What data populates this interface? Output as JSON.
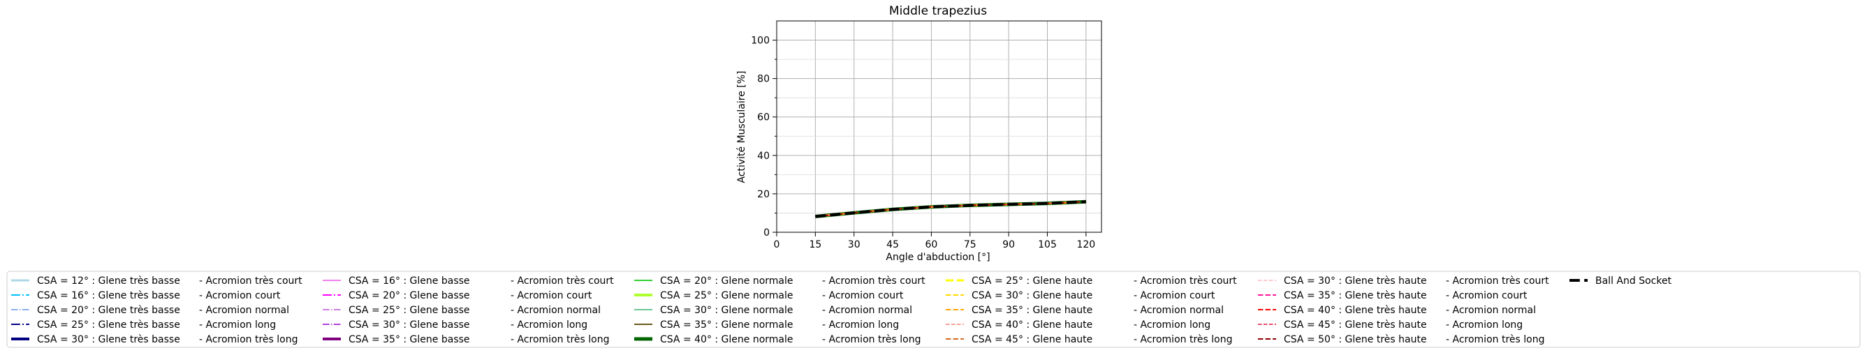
{
  "chart_data": {
    "type": "line",
    "title": "Middle trapezius",
    "xlabel": "Angle d'abduction [°]",
    "ylabel": "Activité Musculaire [%]",
    "xlim": [
      0,
      126
    ],
    "ylim": [
      0,
      110
    ],
    "xticks": [
      0,
      15,
      30,
      45,
      60,
      75,
      90,
      105,
      120
    ],
    "yticks": [
      0,
      20,
      40,
      60,
      80,
      100
    ],
    "grid": true,
    "legend_position": "bottom",
    "x": [
      15,
      30,
      45,
      60,
      75,
      90,
      105,
      120
    ],
    "series": [
      {
        "name": "CSA = 12° : Glene très basse",
        "color": "#add8e6",
        "dash": "solid",
        "width": 3,
        "values": [
          8.2,
          10.1,
          11.9,
          13.2,
          14.0,
          14.5,
          15.0,
          15.9
        ]
      },
      {
        "name": "CSA = 16° : Glene très basse",
        "color": "#00bfff",
        "dash": "dashdot",
        "width": 2,
        "values": [
          8.2,
          10.1,
          11.9,
          13.2,
          14.0,
          14.5,
          15.0,
          15.9
        ]
      },
      {
        "name": "CSA = 20° : Glene très basse",
        "color": "#6495ed",
        "dash": "dashdot",
        "width": 1.5,
        "values": [
          8.2,
          10.1,
          11.9,
          13.2,
          14.0,
          14.5,
          15.0,
          15.9
        ]
      },
      {
        "name": "CSA = 25° : Glene très basse",
        "color": "#00008b",
        "dash": "dashdot",
        "width": 2,
        "values": [
          8.2,
          10.1,
          11.9,
          13.2,
          14.0,
          14.5,
          15.0,
          15.9
        ]
      },
      {
        "name": "CSA = 30° : Glene très basse",
        "color": "#000080",
        "dash": "solid",
        "width": 4,
        "values": [
          8.2,
          10.1,
          11.9,
          13.2,
          14.0,
          14.5,
          15.0,
          15.9
        ]
      },
      {
        "name": "CSA = 16° : Glene basse",
        "color": "#ee82ee",
        "dash": "solid",
        "width": 2,
        "values": [
          8.2,
          10.1,
          11.9,
          13.2,
          14.0,
          14.5,
          15.0,
          15.9
        ]
      },
      {
        "name": "CSA = 20° : Glene basse",
        "color": "#ff00ff",
        "dash": "dashdot",
        "width": 2,
        "values": [
          8.2,
          10.1,
          11.9,
          13.2,
          14.0,
          14.5,
          15.0,
          15.9
        ]
      },
      {
        "name": "CSA = 25° : Glene basse",
        "color": "#ba55d3",
        "dash": "dashdot",
        "width": 1.5,
        "values": [
          8.2,
          10.1,
          11.9,
          13.2,
          14.0,
          14.5,
          15.0,
          15.9
        ]
      },
      {
        "name": "CSA = 30° : Glene basse",
        "color": "#9400d3",
        "dash": "dashdot",
        "width": 1.5,
        "values": [
          8.2,
          10.1,
          11.9,
          13.2,
          14.0,
          14.5,
          15.0,
          15.9
        ]
      },
      {
        "name": "CSA = 35° : Glene basse",
        "color": "#800080",
        "dash": "solid",
        "width": 4,
        "values": [
          8.2,
          10.1,
          11.9,
          13.2,
          14.0,
          14.5,
          15.0,
          15.9
        ]
      },
      {
        "name": "CSA = 20° : Glene normale",
        "color": "#32cd32",
        "dash": "solid",
        "width": 2,
        "values": [
          8.2,
          10.1,
          11.9,
          13.2,
          14.0,
          14.5,
          15.0,
          15.9
        ]
      },
      {
        "name": "CSA = 25° : Glene normale",
        "color": "#adff2f",
        "dash": "solid",
        "width": 4,
        "values": [
          8.2,
          10.1,
          11.9,
          13.2,
          14.0,
          14.5,
          15.0,
          15.9
        ]
      },
      {
        "name": "CSA = 30° : Glene normale",
        "color": "#3cb371",
        "dash": "solid",
        "width": 1.5,
        "values": [
          8.2,
          10.1,
          11.9,
          13.2,
          14.0,
          14.5,
          15.0,
          15.9
        ]
      },
      {
        "name": "CSA = 35° : Glene normale",
        "color": "#6b5a1e",
        "dash": "solid",
        "width": 2,
        "values": [
          8.2,
          10.1,
          11.9,
          13.2,
          14.0,
          14.5,
          15.0,
          15.9
        ]
      },
      {
        "name": "CSA = 40° : Glene normale",
        "color": "#006400",
        "dash": "solid",
        "width": 5,
        "values": [
          8.2,
          10.1,
          11.9,
          13.2,
          14.0,
          14.5,
          15.0,
          15.9
        ]
      },
      {
        "name": "CSA = 25° : Glene haute",
        "color": "#ffff00",
        "dash": "dashed",
        "width": 3,
        "values": [
          8.2,
          10.1,
          11.9,
          13.2,
          14.0,
          14.5,
          15.0,
          15.9
        ]
      },
      {
        "name": "CSA = 30° : Glene haute",
        "color": "#ffd700",
        "dash": "dashed",
        "width": 2,
        "values": [
          8.2,
          10.1,
          11.9,
          13.2,
          14.0,
          14.5,
          15.0,
          15.9
        ]
      },
      {
        "name": "CSA = 35° : Glene haute",
        "color": "#ffa500",
        "dash": "dashed",
        "width": 2,
        "values": [
          8.2,
          10.1,
          11.9,
          13.2,
          14.0,
          14.5,
          15.0,
          15.9
        ]
      },
      {
        "name": "CSA = 40° : Glene haute",
        "color": "#fa8072",
        "dash": "dashed",
        "width": 1.5,
        "values": [
          8.2,
          10.1,
          11.9,
          13.2,
          14.0,
          14.5,
          15.0,
          15.9
        ]
      },
      {
        "name": "CSA = 45° : Glene haute",
        "color": "#d2691e",
        "dash": "dashed",
        "width": 2,
        "values": [
          8.2,
          10.1,
          11.9,
          13.2,
          14.0,
          14.5,
          15.0,
          15.9
        ]
      },
      {
        "name": "CSA = 30° : Glene très haute",
        "color": "#ffb6c1",
        "dash": "dashed",
        "width": 1.5,
        "values": [
          8.2,
          10.1,
          11.9,
          13.2,
          14.0,
          14.5,
          15.0,
          15.9
        ]
      },
      {
        "name": "CSA = 35° : Glene très haute",
        "color": "#ff1493",
        "dash": "dashed",
        "width": 2,
        "values": [
          8.2,
          10.1,
          11.9,
          13.2,
          14.0,
          14.5,
          15.0,
          15.9
        ]
      },
      {
        "name": "CSA = 40° : Glene très haute",
        "color": "#ff0000",
        "dash": "dashed",
        "width": 2,
        "values": [
          8.2,
          10.1,
          11.9,
          13.2,
          14.0,
          14.5,
          15.0,
          15.9
        ]
      },
      {
        "name": "CSA = 45° : Glene très haute",
        "color": "#dc143c",
        "dash": "dashed",
        "width": 1.5,
        "values": [
          8.2,
          10.1,
          11.9,
          13.2,
          14.0,
          14.5,
          15.0,
          15.9
        ]
      },
      {
        "name": "CSA = 50° : Glene très haute",
        "color": "#8b0000",
        "dash": "dashed",
        "width": 2,
        "values": [
          8.2,
          10.1,
          11.9,
          13.2,
          14.0,
          14.5,
          15.0,
          15.9
        ]
      },
      {
        "name": "Ball And Socket",
        "color": "#000000",
        "dash": "dashed",
        "width": 4,
        "values": [
          8.2,
          10.1,
          11.9,
          13.2,
          14.0,
          14.5,
          15.0,
          15.9
        ]
      }
    ],
    "legend_entries": [
      {
        "series": 0,
        "suffix": "Acromion très court"
      },
      {
        "series": 1,
        "suffix": "Acromion court"
      },
      {
        "series": 2,
        "suffix": "Acromion normal"
      },
      {
        "series": 3,
        "suffix": "Acromion long"
      },
      {
        "series": 4,
        "suffix": "Acromion très long"
      },
      {
        "series": 5,
        "suffix": "Acromion très court"
      },
      {
        "series": 6,
        "suffix": "Acromion court"
      },
      {
        "series": 7,
        "suffix": "Acromion normal"
      },
      {
        "series": 8,
        "suffix": "Acromion long"
      },
      {
        "series": 9,
        "suffix": "Acromion très long"
      },
      {
        "series": 10,
        "suffix": "Acromion très court"
      },
      {
        "series": 11,
        "suffix": "Acromion court"
      },
      {
        "series": 12,
        "suffix": "Acromion normal"
      },
      {
        "series": 13,
        "suffix": "Acromion long"
      },
      {
        "series": 14,
        "suffix": "Acromion très long"
      },
      {
        "series": 15,
        "suffix": "Acromion très court"
      },
      {
        "series": 16,
        "suffix": "Acromion court"
      },
      {
        "series": 17,
        "suffix": "Acromion normal"
      },
      {
        "series": 18,
        "suffix": "Acromion long"
      },
      {
        "series": 19,
        "suffix": "Acromion très long"
      },
      {
        "series": 20,
        "suffix": "Acromion très court"
      },
      {
        "series": 21,
        "suffix": "Acromion court"
      },
      {
        "series": 22,
        "suffix": "Acromion normal"
      },
      {
        "series": 23,
        "suffix": "Acromion long"
      },
      {
        "series": 24,
        "suffix": "Acromion très long"
      },
      {
        "series": 25,
        "suffix": ""
      }
    ]
  }
}
